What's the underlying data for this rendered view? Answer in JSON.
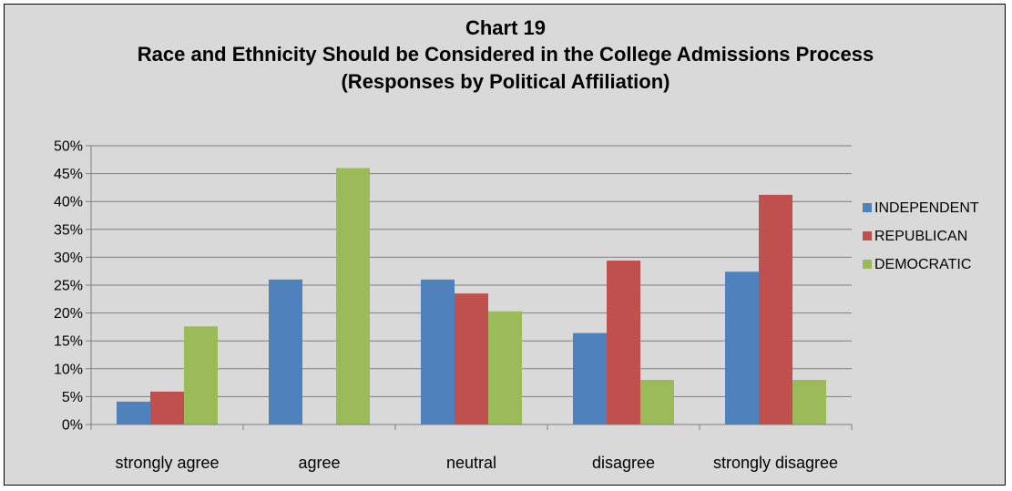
{
  "chart_data": {
    "type": "bar",
    "title": [
      "Chart 19",
      "Race and Ethnicity Should be Considered in the College Admissions Process",
      "(Responses by Political Affiliation)"
    ],
    "xlabel": "",
    "ylabel": "",
    "categories": [
      "strongly agree",
      "agree",
      "neutral",
      "disagree",
      "strongly disagree"
    ],
    "series": [
      {
        "name": "INDEPENDENT",
        "color": "#4f81bd",
        "values": [
          4.1,
          26.0,
          26.0,
          16.4,
          27.4
        ]
      },
      {
        "name": "REPUBLICAN",
        "color": "#c0504d",
        "values": [
          5.9,
          0,
          23.5,
          29.4,
          41.2
        ]
      },
      {
        "name": "DEMOCRATIC",
        "color": "#9bbb59",
        "values": [
          17.6,
          46.0,
          20.3,
          8.0,
          8.0
        ]
      }
    ],
    "ylim": [
      0,
      50
    ],
    "yticks": [
      "0%",
      "5%",
      "10%",
      "15%",
      "20%",
      "25%",
      "30%",
      "35%",
      "40%",
      "45%",
      "50%"
    ],
    "grid": true,
    "legend": "right"
  }
}
